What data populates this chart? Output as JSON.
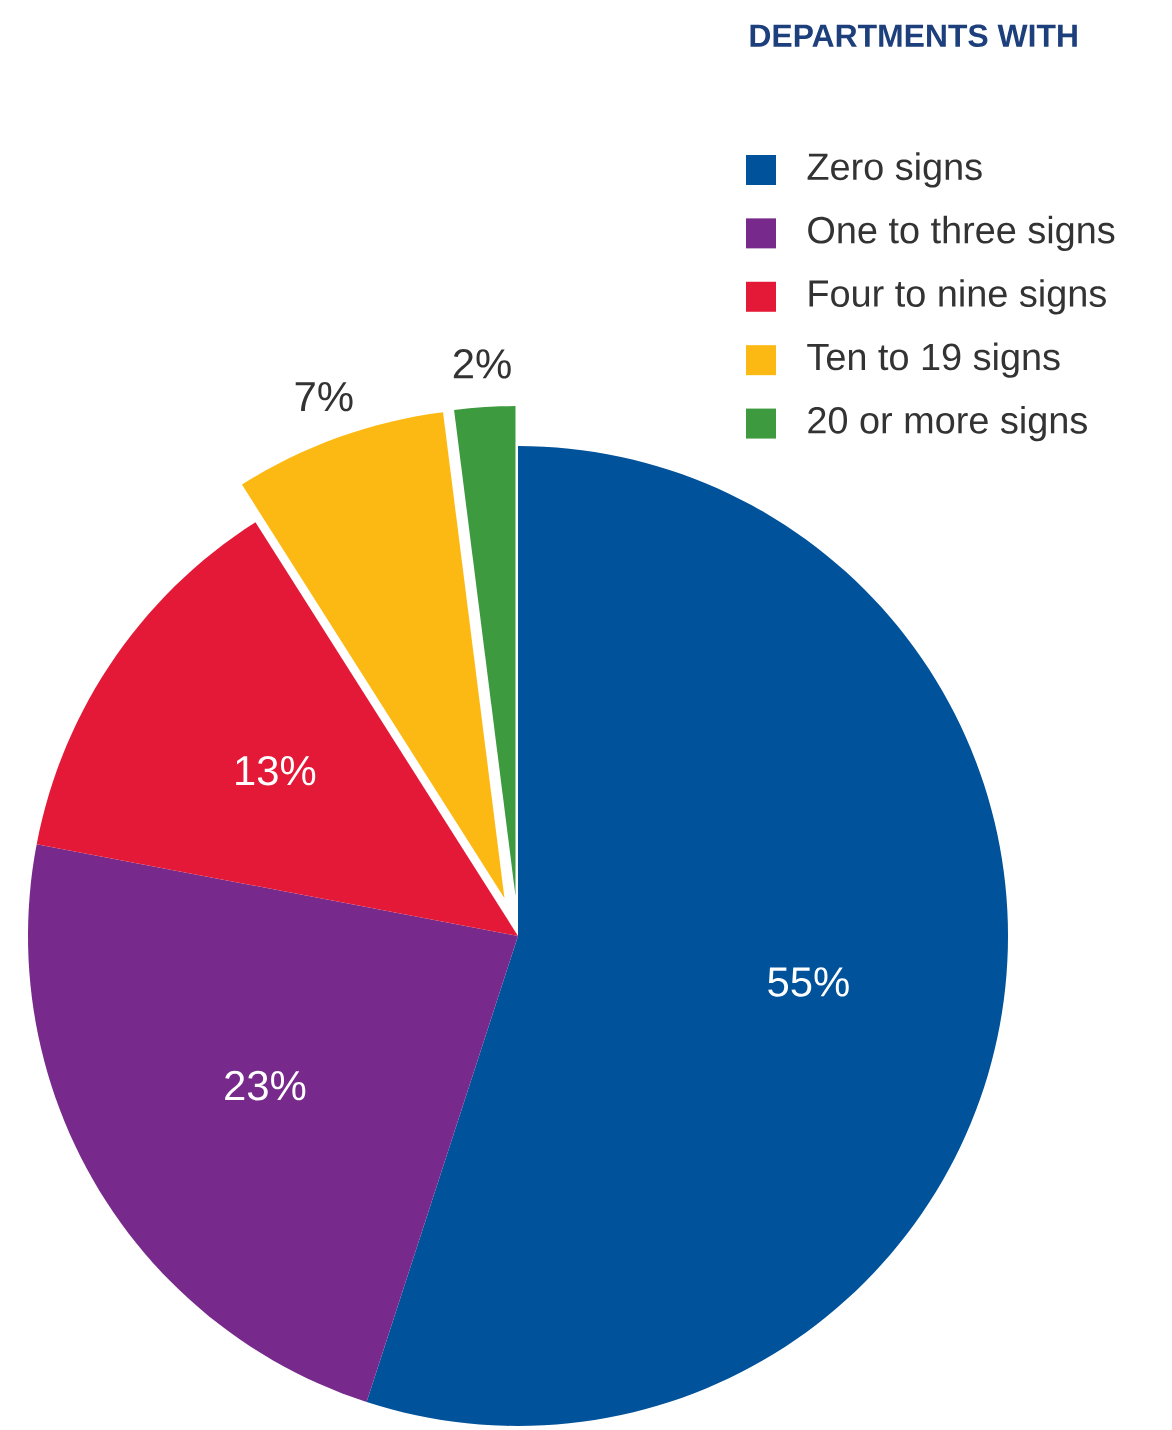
{
  "chart_data": {
    "type": "pie",
    "title": "DEPARTMENTS WITH",
    "categories": [
      "Zero signs",
      "One to three signs",
      "Four to nine signs",
      "Ten to 19 signs",
      "20 or more signs"
    ],
    "values": [
      55,
      23,
      13,
      7,
      2
    ],
    "colors": [
      "#00529b",
      "#772a8c",
      "#e31937",
      "#fdb913",
      "#3d9a3e"
    ],
    "value_labels": [
      "55%",
      "23%",
      "13%",
      "7%",
      "2%"
    ],
    "legend": "top right"
  }
}
